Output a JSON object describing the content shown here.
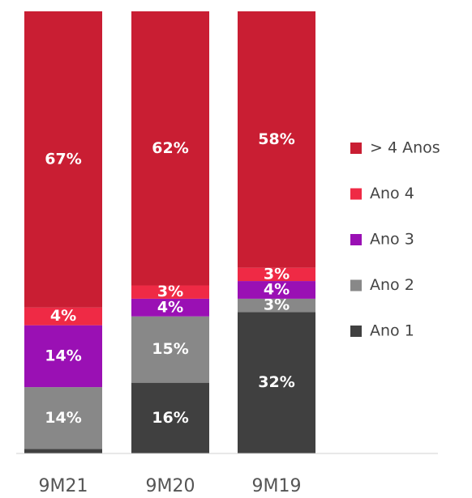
{
  "chart_data": {
    "type": "stacked_bar",
    "categories": [
      "9M21",
      "9M20",
      "9M19"
    ],
    "ylim": [
      0,
      100
    ],
    "legend": "right",
    "series": [
      {
        "name": "Ano 1",
        "color": "#404040",
        "values": [
          1,
          16,
          32
        ],
        "value_labels": [
          "1%",
          "16%",
          "32%"
        ]
      },
      {
        "name": "Ano 2",
        "color": "#888888",
        "values": [
          14,
          15,
          3
        ],
        "value_labels": [
          "14%",
          "15%",
          "3%"
        ]
      },
      {
        "name": "Ano 3",
        "color": "#9a10b4",
        "values": [
          14,
          4,
          4
        ],
        "value_labels": [
          "14%",
          "4%",
          "4%"
        ]
      },
      {
        "name": "Ano 4",
        "color": "#ef2a45",
        "values": [
          4,
          3,
          3
        ],
        "value_labels": [
          "4%",
          "3%",
          "3%"
        ]
      },
      {
        "name": "> 4 Anos",
        "color": "#c91e33",
        "values": [
          67,
          62,
          58
        ],
        "value_labels": [
          "67%",
          "62%",
          "58%"
        ]
      }
    ]
  }
}
